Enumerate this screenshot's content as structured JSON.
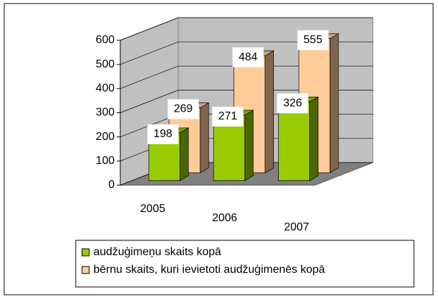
{
  "chart_data": {
    "type": "bar3d",
    "categories": [
      "2005",
      "2006",
      "2007"
    ],
    "series": [
      {
        "name": "audžuģimeņu skaits kopā",
        "color": "#99cc00",
        "values": [
          198,
          271,
          326
        ]
      },
      {
        "name": "bērnu skaits, kuri ievietoti audžuģimenēs kopā",
        "color": "#ffcc99",
        "values": [
          269,
          484,
          555
        ]
      }
    ],
    "ylim": [
      0,
      600
    ],
    "yticks": [
      0,
      100,
      200,
      300,
      400,
      500,
      600
    ],
    "grid": true
  }
}
